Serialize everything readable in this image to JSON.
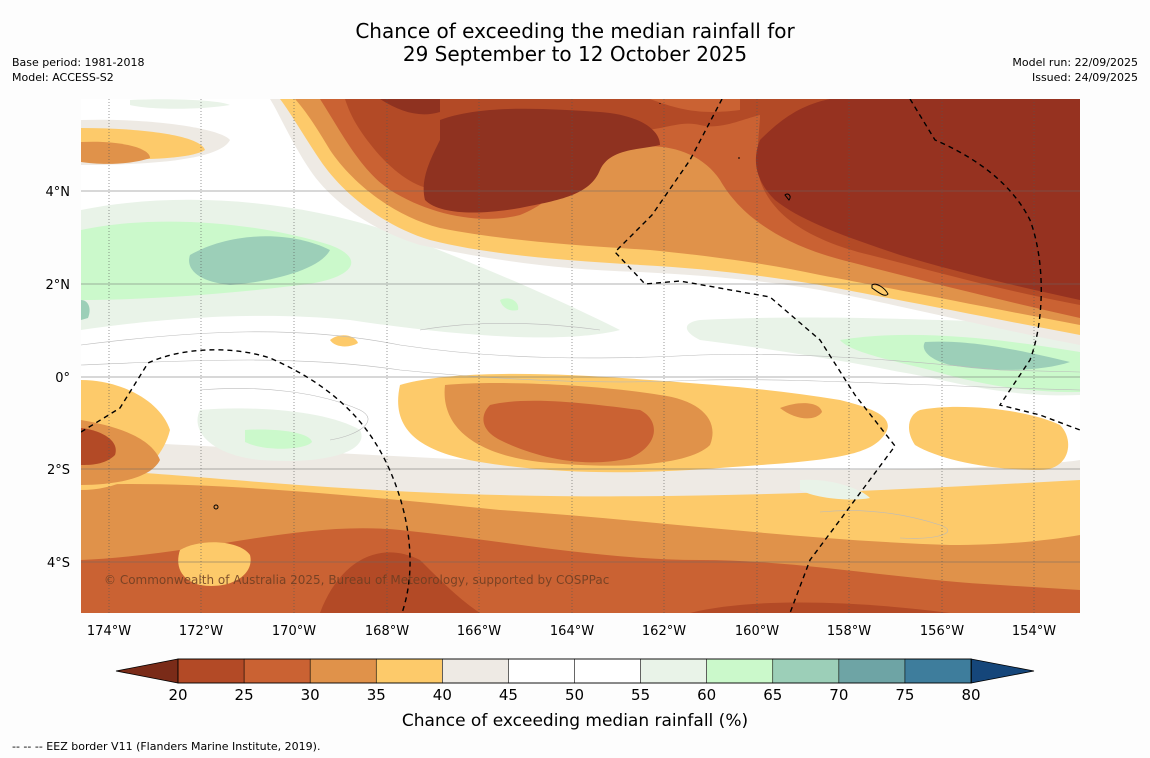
{
  "title": {
    "line1": "Chance of exceeding the median rainfall for",
    "line2": "29 September to 12 October 2025"
  },
  "meta_left": {
    "base_period": "Base period: 1981-2018",
    "model": "Model: ACCESS-S2"
  },
  "meta_right": {
    "model_run": "Model run: 22/09/2025",
    "issued": "Issued: 24/09/2025"
  },
  "map": {
    "lat_labels": [
      "4°N",
      "2°N",
      "0°",
      "2°S",
      "4°S"
    ],
    "lon_labels": [
      "174°W",
      "172°W",
      "170°W",
      "168°W",
      "166°W",
      "164°W",
      "162°W",
      "160°W",
      "158°W",
      "156°W",
      "154°W"
    ],
    "copyright": "© Commonwealth of Australia 2025, Bureau of Meteorology, supported by COSPPac"
  },
  "colorbar": {
    "ticks": [
      "20",
      "25",
      "30",
      "35",
      "40",
      "45",
      "50",
      "55",
      "60",
      "65",
      "70",
      "75",
      "80"
    ],
    "colors": [
      "#b34a26",
      "#ca6233",
      "#e0924a",
      "#fdca6a",
      "#eeeae4",
      "#ffffff",
      "#ffffff",
      "#e9f3e8",
      "#cbf9cb",
      "#9ccfb8",
      "#6ea4a5",
      "#3e7d9c"
    ],
    "below_color": "#7a2b18",
    "above_color": "#15467a",
    "label": "Chance of exceeding median rainfall (%)"
  },
  "footnote": "--  --  -- EEZ border V11 (Flanders Marine Institute, 2019)."
}
